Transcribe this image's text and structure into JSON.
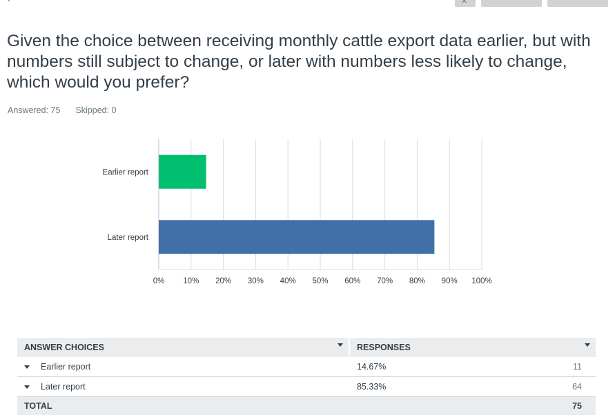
{
  "question": {
    "title": "Given the choice between receiving monthly cattle export data earlier, but with numbers still subject to change, or later with numbers less likely to change, which would you prefer?",
    "answered": "Answered: 75",
    "skipped": "Skipped: 0"
  },
  "colors": {
    "earlier_bar": "#00bf6f",
    "later_bar": "#4170a8",
    "grid": "#d9dde0",
    "text": "#333e48"
  },
  "chart_data": {
    "type": "bar",
    "orientation": "horizontal",
    "categories": [
      "Earlier report",
      "Later report"
    ],
    "values": [
      14.67,
      85.33
    ],
    "xlim": [
      0,
      100
    ],
    "xticks": [
      "0%",
      "10%",
      "20%",
      "30%",
      "40%",
      "50%",
      "60%",
      "70%",
      "80%",
      "90%",
      "100%"
    ],
    "grid": true,
    "title": "",
    "xlabel": "",
    "ylabel": ""
  },
  "table": {
    "header": {
      "choices": "ANSWER CHOICES",
      "responses": "RESPONSES"
    },
    "rows": [
      {
        "choice": "Earlier report",
        "percent": "14.67%",
        "count": "11"
      },
      {
        "choice": "Later report",
        "percent": "85.33%",
        "count": "64"
      }
    ],
    "total": {
      "label": "TOTAL",
      "count": "75"
    }
  }
}
